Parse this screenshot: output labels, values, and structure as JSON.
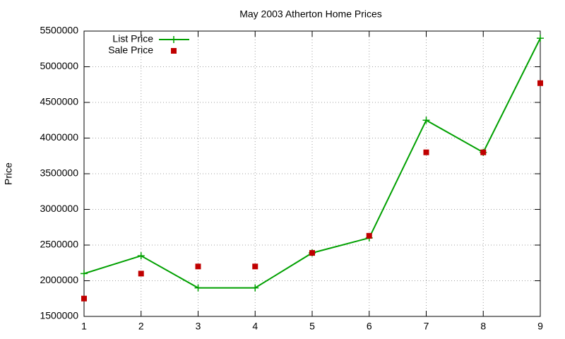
{
  "chart_data": {
    "type": "line",
    "title": "May 2003 Atherton Home Prices",
    "y_label": "Price",
    "x": [
      1,
      2,
      3,
      4,
      5,
      6,
      7,
      8,
      9
    ],
    "series": [
      {
        "name": "List Price",
        "color": "#00a000",
        "style": "linespoints",
        "values": [
          2100000,
          2350000,
          1900000,
          1900000,
          2390000,
          2600000,
          4250000,
          3800000,
          5400000
        ]
      },
      {
        "name": "Sale Price",
        "color": "#c00000",
        "style": "points",
        "values": [
          1750000,
          2100000,
          2200000,
          2200000,
          2390000,
          2630000,
          3800000,
          3800000,
          4770000
        ]
      }
    ],
    "xlim": [
      1,
      9
    ],
    "xticks": [
      1,
      2,
      3,
      4,
      5,
      6,
      7,
      8,
      9
    ],
    "ylim": [
      1500000,
      5500000
    ],
    "yticks": [
      1500000,
      2000000,
      2500000,
      3000000,
      3500000,
      4000000,
      4500000,
      5000000,
      5500000
    ],
    "grid": true,
    "legend": "top-left"
  }
}
